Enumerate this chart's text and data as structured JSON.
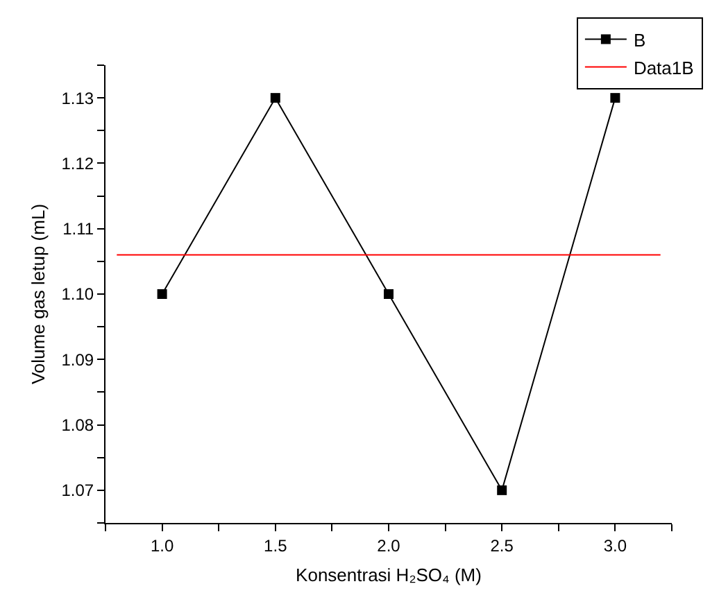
{
  "chart_data": {
    "type": "line",
    "xlabel": "Konsentrasi H₂SO₄ (M)",
    "ylabel": "Volume gas letup (mL)",
    "x": [
      1.0,
      1.5,
      2.0,
      2.5,
      3.0
    ],
    "series": [
      {
        "name": "B",
        "color": "#000000",
        "values": [
          1.1,
          1.13,
          1.1,
          1.07,
          1.13
        ],
        "marker": "square",
        "line_style": "solid"
      },
      {
        "name": "Data1B",
        "color": "#ff0000",
        "type": "line",
        "x": [
          0.8,
          3.2
        ],
        "values": [
          1.106,
          1.106
        ],
        "marker": "none",
        "line_style": "solid"
      }
    ],
    "xlim": [
      0.75,
      3.25
    ],
    "xticks": [
      {
        "value": 0.75,
        "label": null
      },
      {
        "value": 1.0,
        "label": "1.0"
      },
      {
        "value": 1.25,
        "label": null
      },
      {
        "value": 1.5,
        "label": "1.5"
      },
      {
        "value": 1.75,
        "label": null
      },
      {
        "value": 2.0,
        "label": "2.0"
      },
      {
        "value": 2.25,
        "label": null
      },
      {
        "value": 2.5,
        "label": "2.5"
      },
      {
        "value": 2.75,
        "label": null
      },
      {
        "value": 3.0,
        "label": "3.0"
      },
      {
        "value": 3.25,
        "label": null
      }
    ],
    "ylim": [
      1.065,
      1.135
    ],
    "yticks": [
      {
        "value": 1.065,
        "label": null
      },
      {
        "value": 1.07,
        "label": "1.07"
      },
      {
        "value": 1.075,
        "label": null
      },
      {
        "value": 1.08,
        "label": "1.08"
      },
      {
        "value": 1.085,
        "label": null
      },
      {
        "value": 1.09,
        "label": "1.09"
      },
      {
        "value": 1.095,
        "label": null
      },
      {
        "value": 1.1,
        "label": "1.10"
      },
      {
        "value": 1.105,
        "label": null
      },
      {
        "value": 1.11,
        "label": "1.11"
      },
      {
        "value": 1.115,
        "label": null
      },
      {
        "value": 1.12,
        "label": "1.12"
      },
      {
        "value": 1.125,
        "label": null
      },
      {
        "value": 1.13,
        "label": "1.13"
      },
      {
        "value": 1.135,
        "label": null
      }
    ],
    "grid": false,
    "legend": "top right"
  }
}
